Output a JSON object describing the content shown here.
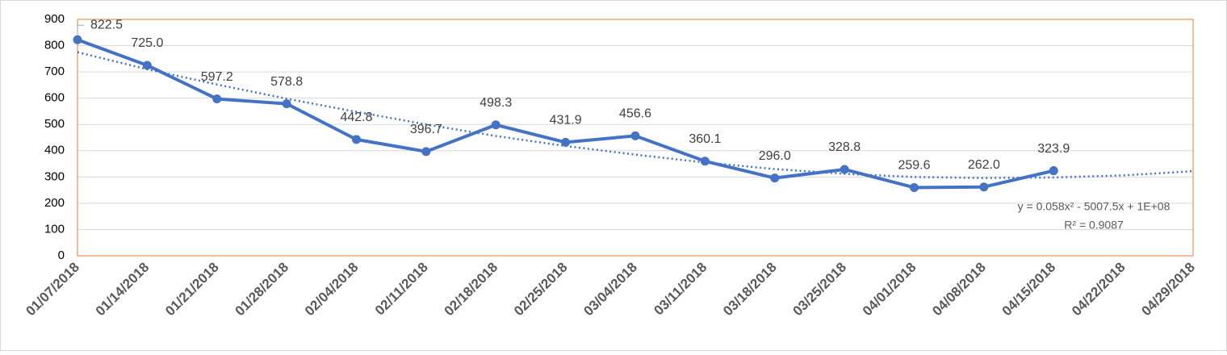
{
  "chart_data": {
    "type": "line",
    "categories": [
      "01/07/2018",
      "01/14/2018",
      "01/21/2018",
      "01/28/2018",
      "02/04/2018",
      "02/11/2018",
      "02/18/2018",
      "02/25/2018",
      "03/04/2018",
      "03/11/2018",
      "03/18/2018",
      "03/25/2018",
      "04/01/2018",
      "04/08/2018",
      "04/15/2018",
      "04/22/2018",
      "04/29/2018"
    ],
    "series": [
      {
        "color": "#4472c4",
        "values": [
          822.5,
          725,
          597.2,
          578.8,
          442.8,
          396.7,
          498.3,
          431.9,
          456.6,
          360.1,
          296,
          328.8,
          259.6,
          262,
          323.9,
          null,
          null
        ],
        "value_labels": [
          "822.5",
          "725.0",
          "597.2",
          "578.8",
          "442.8",
          "396.7",
          "498.3",
          "431.9",
          "456.6",
          "360.1",
          "296.0",
          "328.8",
          "259.6",
          "262.0",
          "323.9",
          null,
          null
        ]
      }
    ],
    "trendline": {
      "type": "polynomial",
      "order": 2,
      "color": "#4472c4",
      "values": [
        775,
        710,
        652,
        598,
        548,
        500,
        456,
        418,
        385,
        355,
        330,
        312,
        300,
        296,
        298,
        306,
        322
      ],
      "equation": "y = 0.058x² - 5007.5x + 1E+08",
      "r_squared": "R² = 0.9087"
    },
    "ylim": [
      0,
      900
    ],
    "yticks": [
      0,
      100,
      200,
      300,
      400,
      500,
      600,
      700,
      800,
      900
    ],
    "grid": true,
    "plot_border_color": "#ed7d31"
  }
}
